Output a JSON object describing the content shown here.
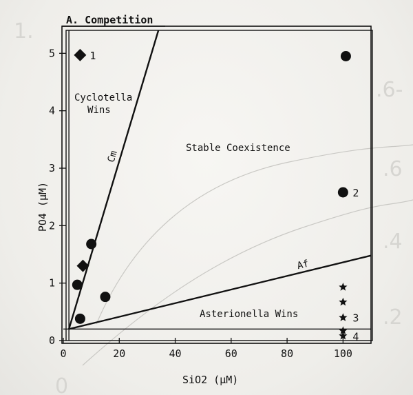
{
  "chart_data": {
    "type": "scatter",
    "title": "A. Competition",
    "xlabel": "SiO2 (μM)",
    "ylabel": "PO4 (μM)",
    "xlim": [
      0,
      110
    ],
    "ylim": [
      0,
      5.4
    ],
    "x_ticks": [
      0,
      20,
      40,
      60,
      80,
      100
    ],
    "y_ticks": [
      0,
      1,
      2,
      3,
      4,
      5
    ],
    "grid": false,
    "legend": "none",
    "boundary_lines": [
      {
        "label": "Cm",
        "from": [
          2,
          0.2
        ],
        "to": [
          34,
          5.4
        ]
      },
      {
        "label": "Af",
        "from": [
          2,
          0.2
        ],
        "to": [
          110,
          1.48
        ]
      }
    ],
    "guide_lines": [
      {
        "axis": "x",
        "value": 2
      },
      {
        "axis": "y",
        "value": 0.2
      }
    ],
    "regions": [
      {
        "label": "Cyclotella Wins",
        "lines": [
          "Cyclotella",
          "Wins"
        ]
      },
      {
        "label": "Stable Coexistence"
      },
      {
        "label": "Asterionella Wins"
      }
    ],
    "series": [
      {
        "marker": "diamond",
        "points": [
          [
            6,
            4.97
          ],
          [
            7,
            1.3
          ]
        ]
      },
      {
        "marker": "circle",
        "points": [
          [
            101,
            4.95
          ],
          [
            100,
            2.58
          ],
          [
            10,
            1.68
          ],
          [
            5,
            0.97
          ],
          [
            15,
            0.76
          ],
          [
            6,
            0.38
          ]
        ]
      },
      {
        "marker": "star",
        "points": [
          [
            100,
            0.93
          ],
          [
            100,
            0.67
          ],
          [
            100,
            0.4
          ],
          [
            100,
            0.17
          ],
          [
            100,
            0.08
          ]
        ]
      }
    ],
    "point_labels": [
      {
        "text": "1",
        "at": [
          6,
          4.97
        ]
      },
      {
        "text": "2",
        "at": [
          100,
          2.58
        ]
      },
      {
        "text": "3",
        "at": [
          100,
          0.4
        ]
      },
      {
        "text": "4",
        "at": [
          100,
          0.08
        ]
      }
    ],
    "background_figure": {
      "tick_labels": [
        "1.",
        ".6-",
        ".6",
        ".4",
        ".2",
        "0"
      ],
      "colors": {
        "ghost": "#c9c8c4"
      }
    },
    "colors": {
      "ink": "#111111",
      "paper": "#f3f2ef"
    }
  }
}
